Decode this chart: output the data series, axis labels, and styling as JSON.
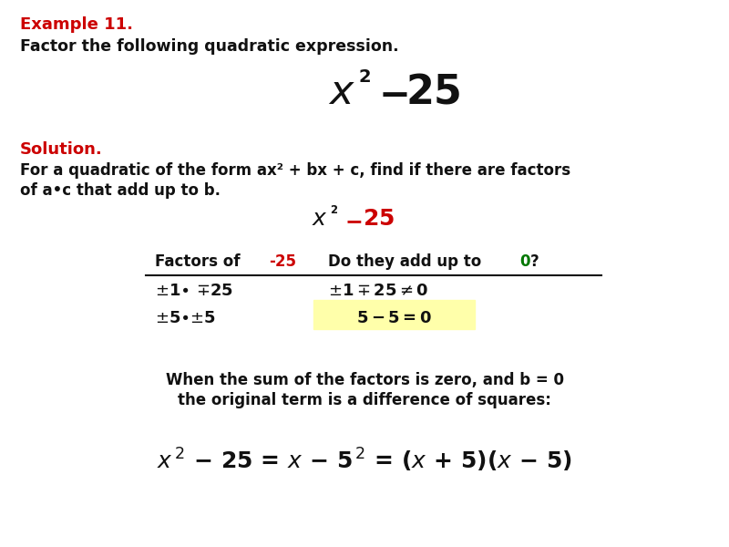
{
  "bg_color": "#ffffff",
  "title_line1": "Example 11.",
  "title_line2": "Factor the following quadratic expression.",
  "solution_label": "Solution.",
  "solution_text1": "For a quadratic of the form ax² + bx + c, find if there are factors",
  "solution_text2": "of a•c that add up to b.",
  "red_color": "#cc0000",
  "green_color": "#007700",
  "black_color": "#111111",
  "yellow_bg": "#ffffaa",
  "summary_line1": "When the sum of the factors is zero, and b = 0",
  "summary_line2": "the original term is a difference of squares:"
}
